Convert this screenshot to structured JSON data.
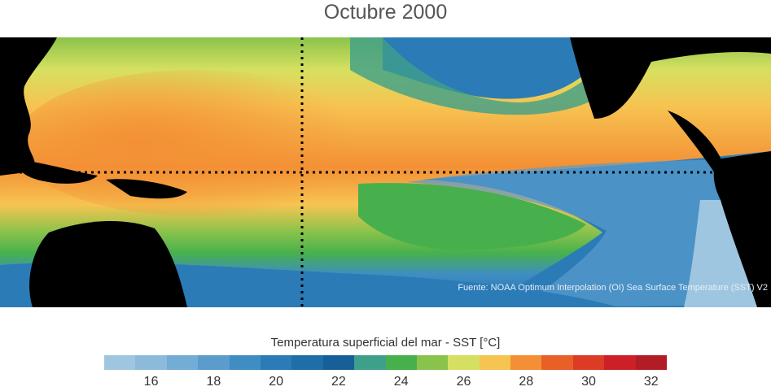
{
  "title": "Octubre 2000",
  "map": {
    "description_source": "Fuente: NOAA Optimum Interpolation (OI) Sea Surface Temperature (SST) V2"
  },
  "colorbar": {
    "label": "Temperatura superficial del mar - SST  [°C]",
    "min": 15,
    "max": 33,
    "step": 1,
    "colors": [
      "#9fc6e0",
      "#8cbadb",
      "#73acd5",
      "#5a9dcc",
      "#3f8dc3",
      "#2b7bb7",
      "#1f6ea8",
      "#165f98",
      "#3e9f8a",
      "#47b04d",
      "#8ac34b",
      "#d6e060",
      "#f6c451",
      "#f39035",
      "#e85f27",
      "#dc3b26",
      "#cc1f28",
      "#b21c24"
    ],
    "ticks": [
      "16",
      "18",
      "20",
      "22",
      "24",
      "26",
      "28",
      "30",
      "32"
    ],
    "tick_values": [
      16,
      18,
      20,
      22,
      24,
      26,
      28,
      30,
      32
    ]
  },
  "colors": {
    "land": "#000000",
    "ocean_cold": "#2b7bb7",
    "ocean_warm": "#f39035"
  }
}
